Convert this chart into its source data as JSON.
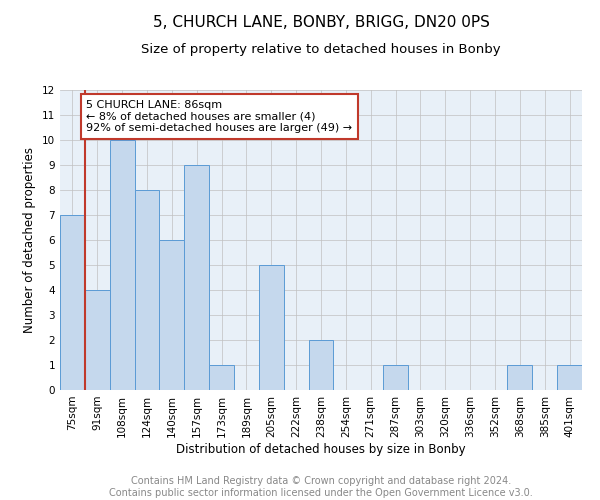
{
  "title": "5, CHURCH LANE, BONBY, BRIGG, DN20 0PS",
  "subtitle": "Size of property relative to detached houses in Bonby",
  "xlabel": "Distribution of detached houses by size in Bonby",
  "ylabel": "Number of detached properties",
  "categories": [
    "75sqm",
    "91sqm",
    "108sqm",
    "124sqm",
    "140sqm",
    "157sqm",
    "173sqm",
    "189sqm",
    "205sqm",
    "222sqm",
    "238sqm",
    "254sqm",
    "271sqm",
    "287sqm",
    "303sqm",
    "320sqm",
    "336sqm",
    "352sqm",
    "368sqm",
    "385sqm",
    "401sqm"
  ],
  "values": [
    7,
    4,
    10,
    8,
    6,
    9,
    1,
    0,
    5,
    0,
    2,
    0,
    0,
    1,
    0,
    0,
    0,
    0,
    1,
    0,
    1
  ],
  "bar_color": "#c5d8ed",
  "bar_edge_color": "#5b9bd5",
  "highlight_line_color": "#c0392b",
  "annotation_text": "5 CHURCH LANE: 86sqm\n← 8% of detached houses are smaller (4)\n92% of semi-detached houses are larger (49) →",
  "annotation_box_color": "#ffffff",
  "annotation_box_edge_color": "#c0392b",
  "ylim": [
    0,
    12
  ],
  "yticks": [
    0,
    1,
    2,
    3,
    4,
    5,
    6,
    7,
    8,
    9,
    10,
    11,
    12
  ],
  "footer_text": "Contains HM Land Registry data © Crown copyright and database right 2024.\nContains public sector information licensed under the Open Government Licence v3.0.",
  "background_color": "#ffffff",
  "plot_bg_color": "#e8f0f8",
  "grid_color": "#c0c0c0",
  "title_fontsize": 11,
  "subtitle_fontsize": 9.5,
  "axis_label_fontsize": 8.5,
  "tick_fontsize": 7.5,
  "annotation_fontsize": 8,
  "footer_fontsize": 7
}
